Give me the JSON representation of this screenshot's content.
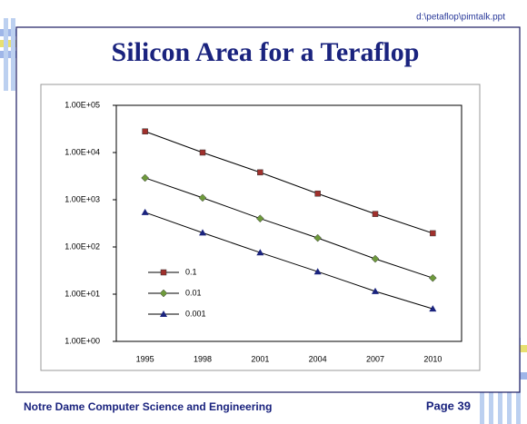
{
  "slide": {
    "file_path": "d:\\petaflop\\pimtalk.ppt",
    "footer": "Notre Dame Computer Science and Engineering",
    "page_label": "Page 39"
  },
  "chart_data": {
    "type": "line",
    "title": "Silicon Area for a Teraflop",
    "categories": [
      "1995",
      "1998",
      "2001",
      "2004",
      "2007",
      "2010"
    ],
    "yscale": "log",
    "ylim": [
      1,
      100000
    ],
    "yticks": [
      {
        "value": 1,
        "label": "1.00E+00"
      },
      {
        "value": 10,
        "label": "1.00E+01"
      },
      {
        "value": 100,
        "label": "1.00E+02"
      },
      {
        "value": 1000,
        "label": "1.00E+03"
      },
      {
        "value": 10000,
        "label": "1.00E+04"
      },
      {
        "value": 100000,
        "label": "1.00E+05"
      }
    ],
    "line_color": "#000000",
    "series": [
      {
        "name": "0.1",
        "color": "#a0302c",
        "marker": "square",
        "values": [
          28000,
          10000,
          3800,
          1350,
          500,
          195
        ]
      },
      {
        "name": "0.01",
        "color": "#6e9a3c",
        "marker": "diamond",
        "values": [
          2900,
          1100,
          400,
          155,
          56,
          22
        ]
      },
      {
        "name": "0.001",
        "color": "#1a237e",
        "marker": "triangle",
        "values": [
          540,
          200,
          76,
          30,
          11.5,
          4.9
        ]
      }
    ]
  }
}
